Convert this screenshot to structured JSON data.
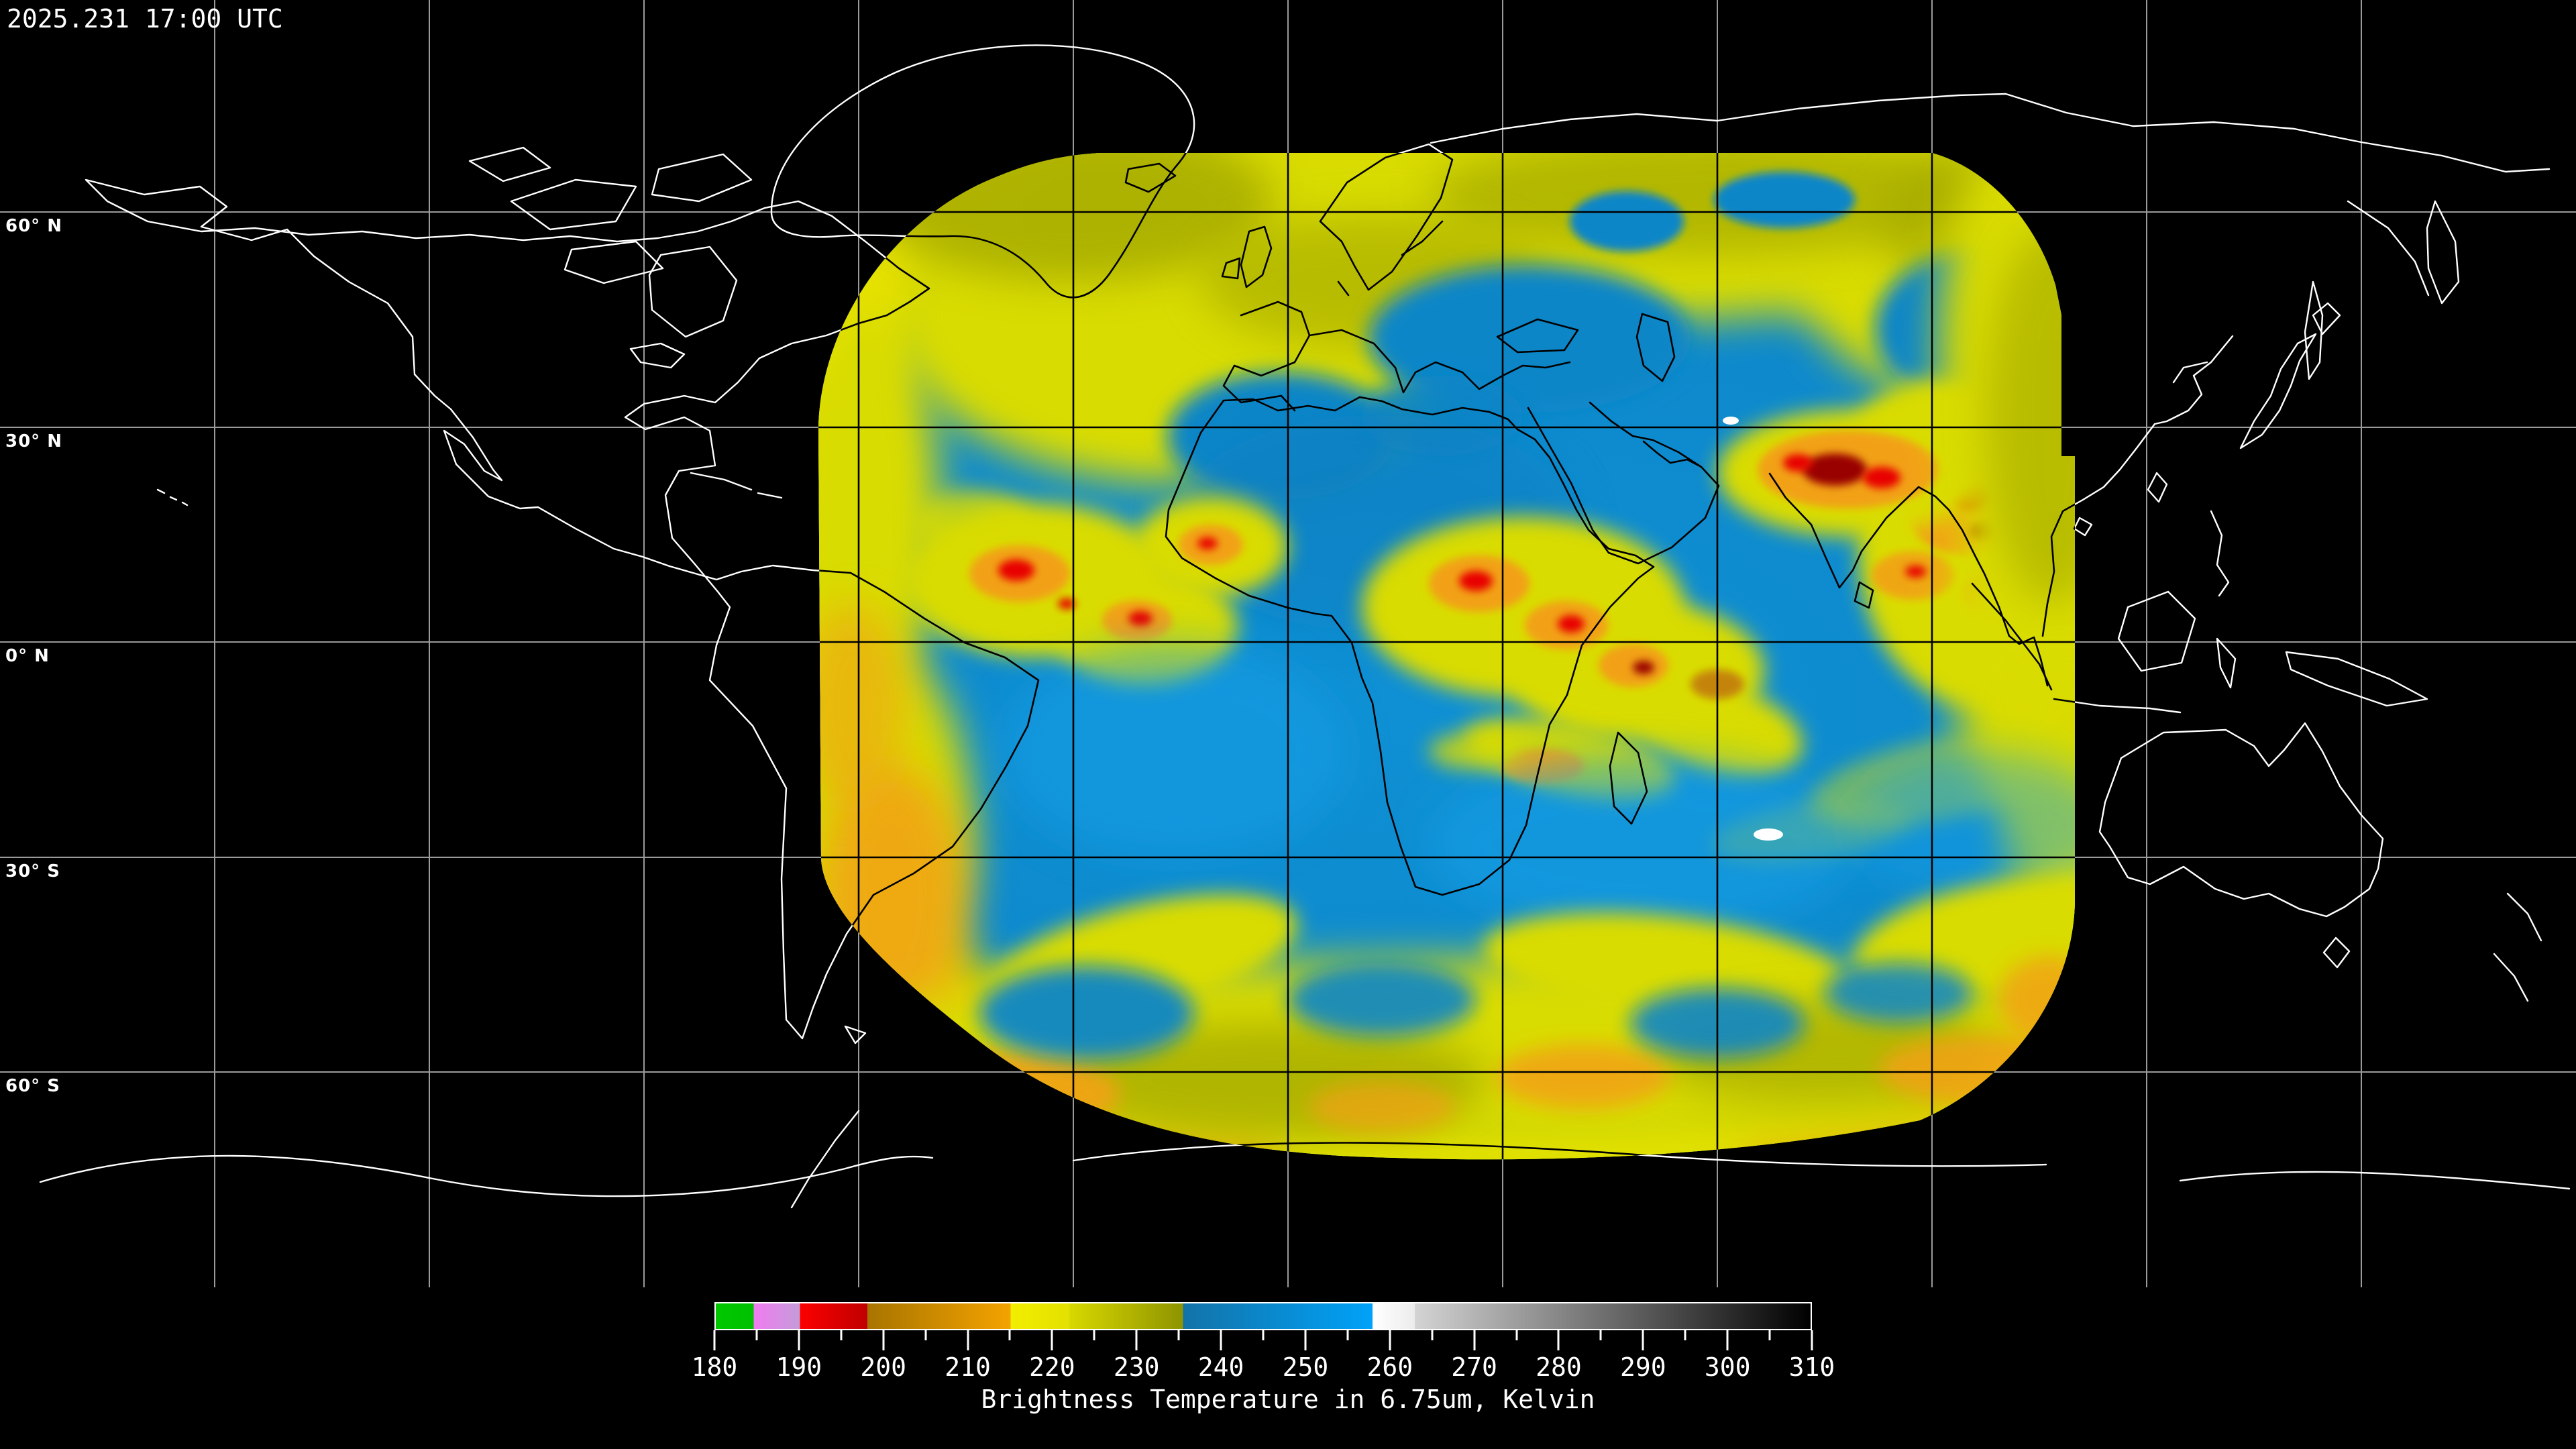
{
  "header": {
    "timestamp": "2025.231 17:00 UTC"
  },
  "map": {
    "latitude_labels": [
      {
        "text": "60° N"
      },
      {
        "text": "30° N"
      },
      {
        "text": "0° N"
      },
      {
        "text": "30° S"
      },
      {
        "text": "60° S"
      }
    ]
  },
  "colorbar": {
    "title": "Brightness Temperature in 6.75um, Kelvin",
    "min": 180,
    "max": 310,
    "minor_tick_step": 5,
    "major_ticks": [
      180,
      190,
      200,
      210,
      220,
      230,
      240,
      250,
      260,
      270,
      280,
      290,
      300,
      310
    ],
    "segments": [
      {
        "from": 180,
        "to": 184.5,
        "color_start": "#00c800",
        "color_end": "#00c000"
      },
      {
        "from": 184.5,
        "to": 190,
        "color_start": "#f07cf0",
        "color_end": "#c49cd8"
      },
      {
        "from": 190,
        "to": 198,
        "color_start": "#fc0000",
        "color_end": "#c00000"
      },
      {
        "from": 198,
        "to": 215,
        "color_start": "#a87400",
        "color_end": "#f4a300"
      },
      {
        "from": 215,
        "to": 222,
        "color_start": "#f2ee00",
        "color_end": "#e4e000"
      },
      {
        "from": 222,
        "to": 235.5,
        "color_start": "#d8d800",
        "color_end": "#8f9400"
      },
      {
        "from": 235.5,
        "to": 258,
        "color_start": "#1373a8",
        "color_end": "#00a2f8"
      },
      {
        "from": 258,
        "to": 263,
        "color_start": "#ffffff",
        "color_end": "#ececec"
      },
      {
        "from": 263,
        "to": 310,
        "color_start": "#d4d4d4",
        "color_end": "#000000"
      }
    ]
  }
}
